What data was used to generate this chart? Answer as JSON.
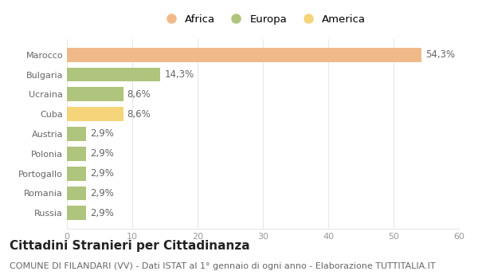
{
  "categories": [
    "Russia",
    "Romania",
    "Portogallo",
    "Polonia",
    "Austria",
    "Cuba",
    "Ucraina",
    "Bulgaria",
    "Marocco"
  ],
  "values": [
    2.9,
    2.9,
    2.9,
    2.9,
    2.9,
    8.6,
    8.6,
    14.3,
    54.3
  ],
  "labels": [
    "2,9%",
    "2,9%",
    "2,9%",
    "2,9%",
    "2,9%",
    "8,6%",
    "8,6%",
    "14,3%",
    "54,3%"
  ],
  "colors": [
    "#afc47d",
    "#afc47d",
    "#afc47d",
    "#afc47d",
    "#afc47d",
    "#f5d47a",
    "#afc47d",
    "#afc47d",
    "#f0b98a"
  ],
  "legend": [
    {
      "label": "Africa",
      "color": "#f0b98a"
    },
    {
      "label": "Europa",
      "color": "#afc47d"
    },
    {
      "label": "America",
      "color": "#f5d47a"
    }
  ],
  "xlim": [
    0,
    60
  ],
  "xticks": [
    0,
    10,
    20,
    30,
    40,
    50,
    60
  ],
  "title": "Cittadini Stranieri per Cittadinanza",
  "subtitle": "COMUNE DI FILANDARI (VV) - Dati ISTAT al 1° gennaio di ogni anno - Elaborazione TUTTITALIA.IT",
  "background_color": "#ffffff",
  "grid_color": "#e8e8e8",
  "bar_height": 0.72,
  "label_fontsize": 8.5,
  "title_fontsize": 11,
  "subtitle_fontsize": 8,
  "tick_fontsize": 8,
  "legend_fontsize": 9.5,
  "yticklabel_color": "#666666",
  "xticklabel_color": "#999999",
  "label_color": "#666666"
}
